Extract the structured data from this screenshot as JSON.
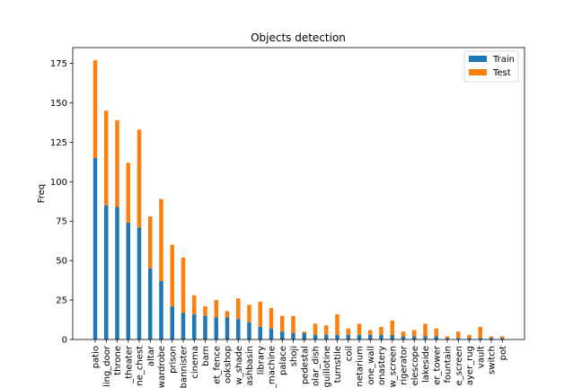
{
  "chart_data": {
    "type": "bar",
    "stacked": true,
    "title": "Objects detection",
    "xlabel": "",
    "ylabel": "Freq",
    "ylim": [
      0,
      185
    ],
    "yticks": [
      0,
      25,
      50,
      75,
      100,
      125,
      150,
      175
    ],
    "grid": false,
    "legend_position": "top-right",
    "categories": [
      "patio",
      "ling_door",
      "throne",
      "_theater",
      "ne_chest",
      "altar",
      "wardrobe",
      "prison",
      "bannister",
      "cinema",
      "barn",
      "et_fence",
      "ookshop",
      "w_shade",
      "ashbasin",
      "library",
      "_machine",
      "palace",
      "shoji",
      "pedestal",
      "olar_dish",
      "guillotine",
      "turnstile",
      "coil",
      "netarium",
      "one_wall",
      "onastery",
      "w_screen",
      "rigerator",
      "elescope",
      "lakeside",
      "er_tower",
      "fountain",
      "e_screen",
      "ayer_rug",
      "vault",
      "switch",
      "pot"
    ],
    "series": [
      {
        "name": "Train",
        "color": "#1f77b4",
        "values": [
          115,
          85,
          84,
          74,
          71,
          45,
          37,
          21,
          17,
          16,
          15,
          14,
          14,
          13,
          11,
          8,
          7,
          5,
          4,
          4,
          3,
          3,
          3,
          3,
          3,
          3,
          3,
          3,
          2,
          2,
          2,
          2,
          1,
          1,
          1,
          1,
          1,
          1
        ]
      },
      {
        "name": "Test",
        "color": "#ff7f0e",
        "values": [
          62,
          60,
          55,
          38,
          62,
          33,
          52,
          39,
          35,
          12,
          6,
          11,
          4,
          13,
          11,
          16,
          13,
          10,
          11,
          1,
          7,
          6,
          13,
          4,
          7,
          3,
          5,
          9,
          3,
          4,
          8,
          5,
          1,
          4,
          2,
          7,
          1,
          1
        ]
      }
    ]
  }
}
